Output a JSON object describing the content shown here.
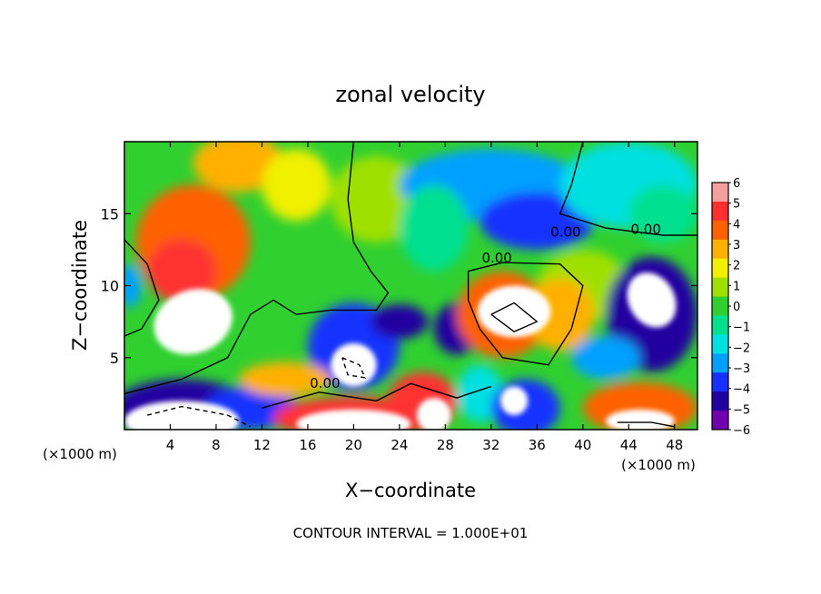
{
  "chart_data": {
    "type": "heatmap",
    "title": "zonal velocity",
    "xlabel": "X−coordinate",
    "ylabel": "Z−coordinate",
    "x_unit_left": "(×1000 m)",
    "x_unit_right": "(×1000 m)",
    "xlim": [
      0,
      50
    ],
    "ylim": [
      0,
      20
    ],
    "x_ticks": [
      4,
      8,
      12,
      16,
      20,
      24,
      28,
      32,
      36,
      40,
      44,
      48
    ],
    "x_tick_labels": [
      "4",
      "8",
      "12",
      "16",
      "20",
      "24",
      "28",
      "32",
      "36",
      "40",
      "44",
      "48"
    ],
    "y_ticks": [
      5,
      10,
      15
    ],
    "y_tick_labels": [
      "5",
      "10",
      "15"
    ],
    "colorbar": {
      "levels": [
        6,
        5,
        4,
        3,
        2,
        1,
        0,
        -1,
        -2,
        -3,
        -4,
        -5,
        -6
      ],
      "labels": [
        "6",
        "5",
        "4",
        "3",
        "2",
        "1",
        "0",
        "−1",
        "−2",
        "−3",
        "−4",
        "−5",
        "−6"
      ],
      "colors": [
        "#f4a0a0",
        "#ff3030",
        "#ff6000",
        "#ffb000",
        "#f0f000",
        "#a0e000",
        "#30d030",
        "#00e090",
        "#00e0e0",
        "#00a0ff",
        "#1830ff",
        "#2000a0",
        "#7000b0"
      ]
    },
    "contour_labels": [
      {
        "text": "0.00",
        "x": 38.5,
        "y": 13.4
      },
      {
        "text": "0.00",
        "x": 32.5,
        "y": 11.6
      },
      {
        "text": "0.00",
        "x": 45.5,
        "y": 13.6
      },
      {
        "text": "0.00",
        "x": 17.5,
        "y": 2.9
      }
    ],
    "footer": "CONTOUR INTERVAL = 1.000E+01"
  }
}
